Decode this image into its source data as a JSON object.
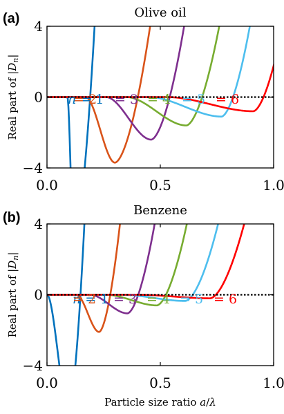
{
  "figure": {
    "xlabel": "Particle size ratio a/λ",
    "ylabel": "Real part of |Dn|"
  },
  "chart_data": [
    {
      "type": "line",
      "panel_label": "(a)",
      "title": "Olive oil",
      "ylabel": "Real part of |Dn|",
      "xlim": [
        0,
        1
      ],
      "ylim": [
        -4,
        4
      ],
      "xticks": [
        "0.0",
        "0.5",
        "1.0"
      ],
      "yticks": [
        "4",
        "0",
        "−4"
      ],
      "reference_line_y": 0,
      "label_prefix": "n = ",
      "series": [
        {
          "name": "1",
          "color": "#0072bd",
          "x0": 0.09,
          "xmin": 0.118,
          "ymin": -8.0,
          "x4": 0.21
        },
        {
          "name": "2",
          "color": "#d95319",
          "x0": 0.17,
          "xmin": 0.3,
          "ymin": -3.7,
          "x4": 0.455
        },
        {
          "name": "3",
          "color": "#7e2f8e",
          "x0": 0.26,
          "xmin": 0.46,
          "ymin": -2.4,
          "x4": 0.605
        },
        {
          "name": "4",
          "color": "#77ac30",
          "x0": 0.35,
          "xmin": 0.615,
          "ymin": -1.6,
          "x4": 0.76
        },
        {
          "name": "5",
          "color": "#4dbeee",
          "x0": 0.45,
          "xmin": 0.77,
          "ymin": -1.1,
          "x4": 0.895
        },
        {
          "name": "6",
          "color": "#ff0000",
          "x0": 0.53,
          "xmin": 0.91,
          "ymin": -0.8,
          "x4": 1.04
        }
      ]
    },
    {
      "type": "line",
      "panel_label": "(b)",
      "title": "Benzene",
      "ylabel": "Real part of |Dn|",
      "xlim": [
        0,
        1
      ],
      "ylim": [
        -4,
        4
      ],
      "xticks": [
        "0.0",
        "0.5",
        "1.0"
      ],
      "yticks": [
        "4",
        "0",
        "−4"
      ],
      "reference_line_y": 0,
      "label_prefix": "n = ",
      "series": [
        {
          "name": "1",
          "color": "#0072bd",
          "x0": 0.0,
          "xmin": 0.095,
          "ymin": -6.5,
          "x4": 0.165
        },
        {
          "name": "2",
          "color": "#d95319",
          "x0": 0.13,
          "xmin": 0.23,
          "ymin": -2.1,
          "x4": 0.322
        },
        {
          "name": "3",
          "color": "#7e2f8e",
          "x0": 0.19,
          "xmin": 0.355,
          "ymin": -1.05,
          "x4": 0.475
        },
        {
          "name": "4",
          "color": "#77ac30",
          "x0": 0.26,
          "xmin": 0.485,
          "ymin": -0.6,
          "x4": 0.617
        },
        {
          "name": "5",
          "color": "#4dbeee",
          "x0": 0.33,
          "xmin": 0.61,
          "ymin": -0.35,
          "x4": 0.755
        },
        {
          "name": "6",
          "color": "#ff0000",
          "x0": 0.4,
          "xmin": 0.72,
          "ymin": -0.2,
          "x4": 0.87
        }
      ]
    }
  ]
}
